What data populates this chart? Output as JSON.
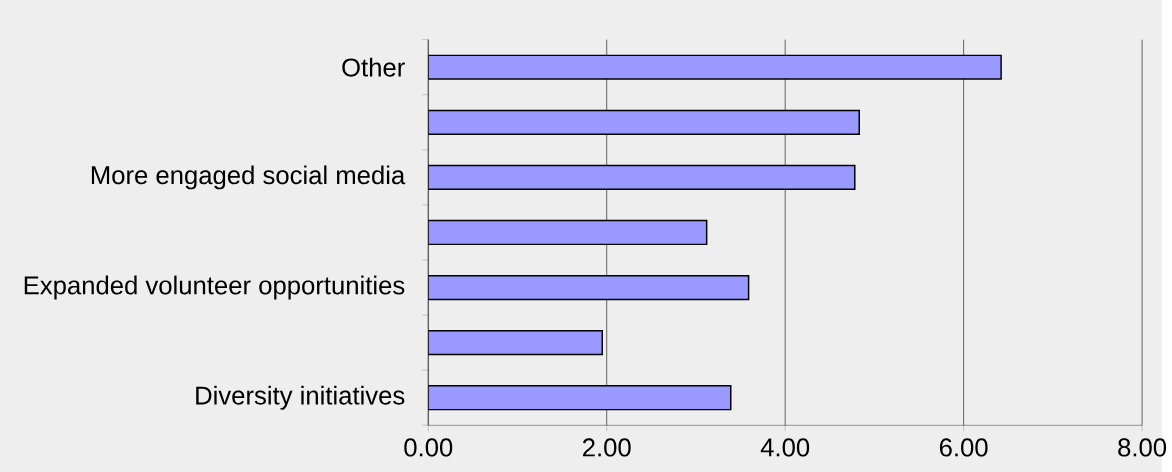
{
  "chart_data": {
    "type": "bar",
    "orientation": "horizontal",
    "categories": [
      "Other",
      null,
      "More engaged social media",
      null,
      "Expanded volunteer opportunities",
      null,
      "Diversity initiatives"
    ],
    "values": [
      6.42,
      4.83,
      4.78,
      3.12,
      3.59,
      1.95,
      3.39
    ],
    "color": "#9999ff",
    "xlim": [
      0,
      8
    ],
    "xticks": [
      {
        "value": 0,
        "label": "0.00"
      },
      {
        "value": 2,
        "label": "2.00"
      },
      {
        "value": 4,
        "label": "4.00"
      },
      {
        "value": 6,
        "label": "6.00"
      },
      {
        "value": 8,
        "label": "8.00"
      }
    ],
    "grid": "x"
  }
}
